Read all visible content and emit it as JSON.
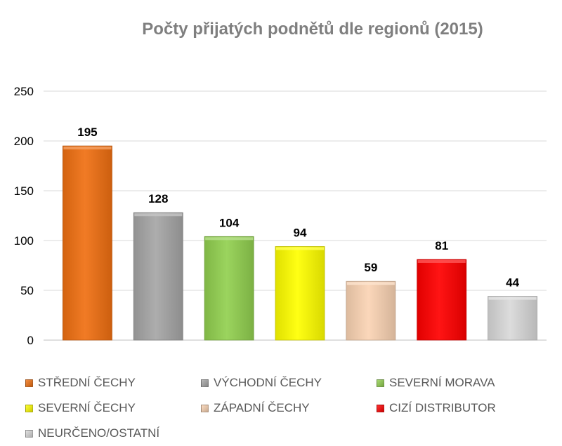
{
  "chart_data": {
    "type": "bar",
    "title": "Počty přijatých podnětů dle regionů (2015)",
    "xlabel": "",
    "ylabel": "",
    "ylim": [
      0,
      250
    ],
    "yticks": [
      0,
      50,
      100,
      150,
      200,
      250
    ],
    "grid": true,
    "legend_position": "bottom",
    "categories": [
      "STŘEDNÍ ČECHY",
      "VÝCHODNÍ ČECHY",
      "SEVERNÍ MORAVA",
      "SEVERNÍ ČECHY",
      "ZÁPADNÍ ČECHY",
      "CIZÍ DISTRIBUTOR",
      "NEURČENO/OSTATNÍ"
    ],
    "values": [
      195,
      128,
      104,
      94,
      59,
      81,
      44
    ],
    "colors": [
      "#f07012",
      "#a6a6a6",
      "#92d050",
      "#ffff00",
      "#fbd4b4",
      "#ff0000",
      "#d9d9d9"
    ]
  }
}
